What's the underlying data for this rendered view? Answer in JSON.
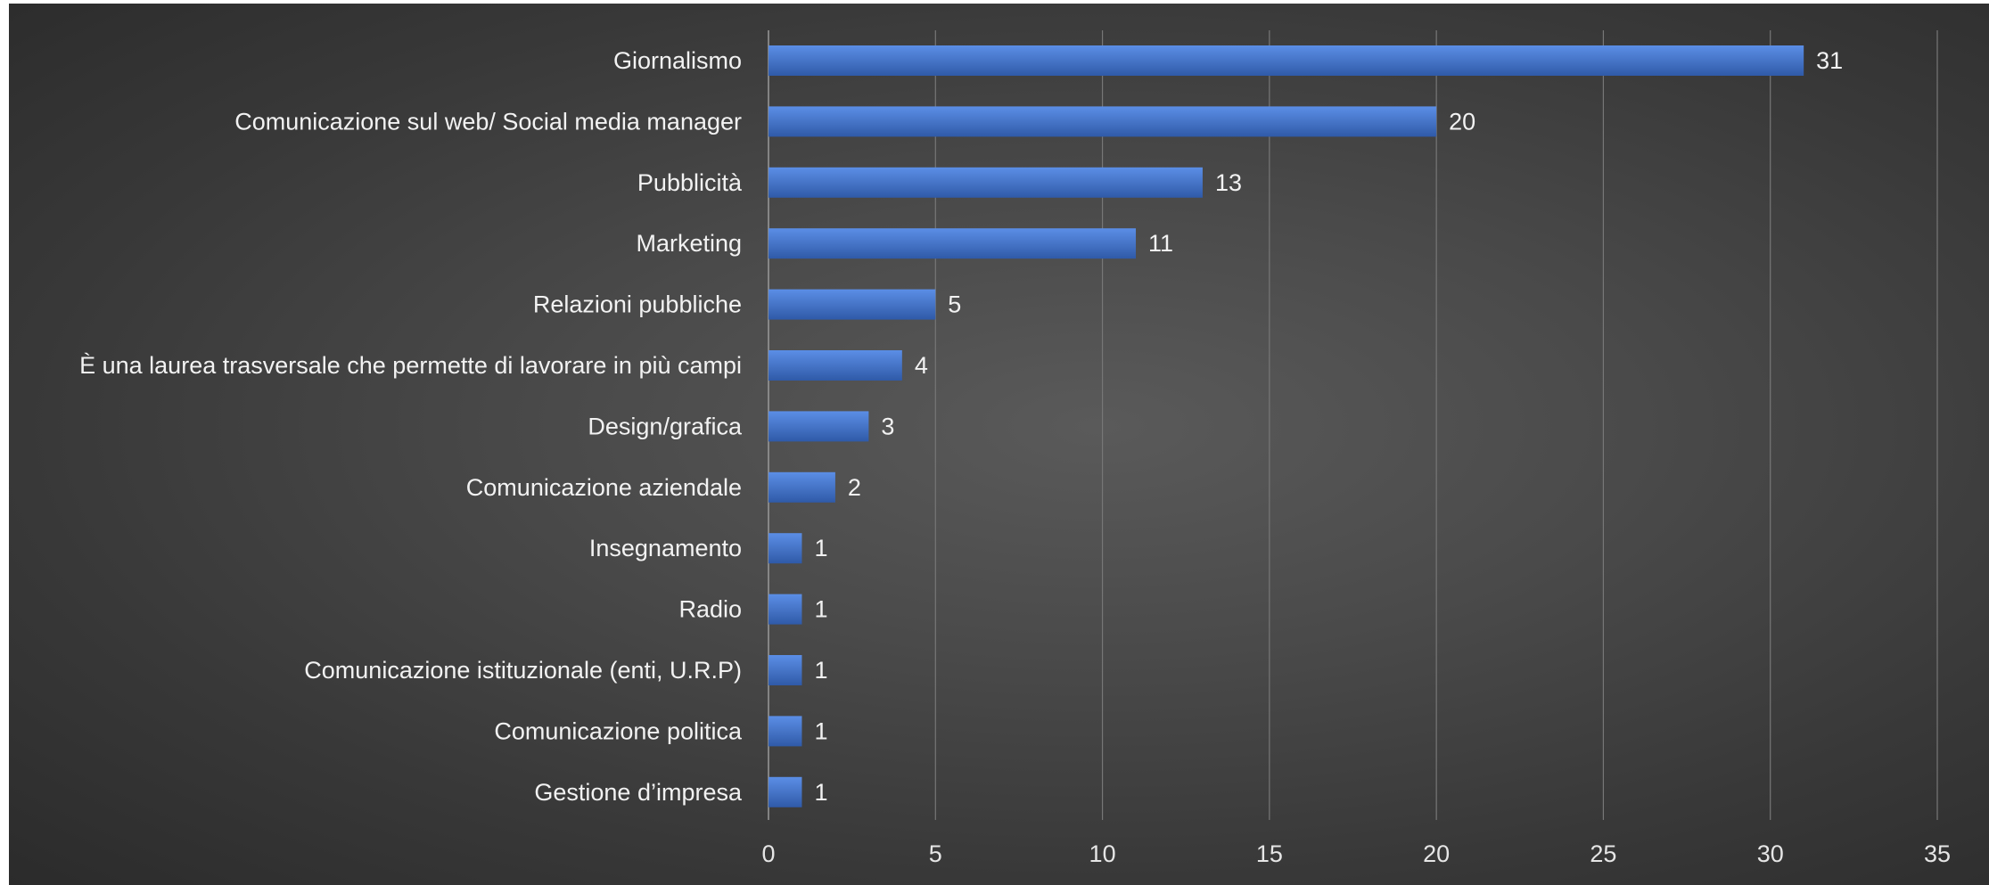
{
  "chart_data": {
    "type": "bar",
    "orientation": "horizontal",
    "title": "",
    "xlabel": "",
    "ylabel": "",
    "categories": [
      "Giornalismo",
      "Comunicazione sul web/ Social media manager",
      "Pubblicità",
      "Marketing",
      "Relazioni pubbliche",
      "È una laurea trasversale che permette di lavorare in più campi",
      "Design/grafica",
      "Comunicazione aziendale",
      "Insegnamento",
      "Radio",
      "Comunicazione istituzionale (enti, U.R.P)",
      "Comunicazione politica",
      "Gestione d’impresa"
    ],
    "values": [
      31,
      20,
      13,
      11,
      5,
      4,
      3,
      2,
      1,
      1,
      1,
      1,
      1
    ],
    "xlim": [
      0,
      35
    ],
    "xticks": [
      "0",
      "5",
      "10",
      "15",
      "20",
      "25",
      "30",
      "35"
    ],
    "grid": true,
    "data_labels": true,
    "bar_color": "#4472c4",
    "background_color": "#404040"
  }
}
